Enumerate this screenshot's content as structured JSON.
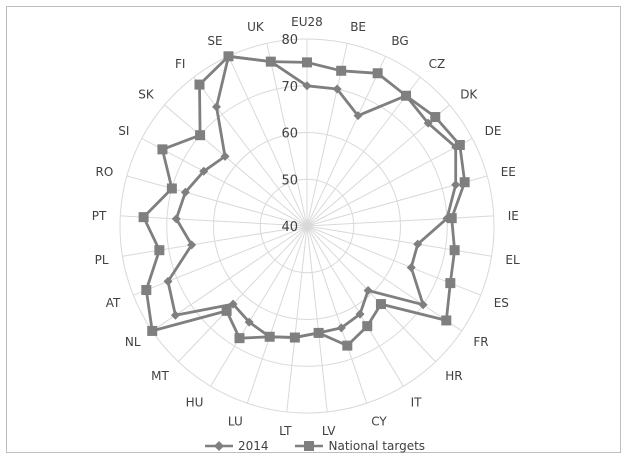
{
  "chart_data": {
    "type": "radar",
    "title": "",
    "categories": [
      "EU28",
      "BE",
      "BG",
      "CZ",
      "DK",
      "DE",
      "EE",
      "IE",
      "EL",
      "ES",
      "FR",
      "HR",
      "IT",
      "CY",
      "LV",
      "LT",
      "LU",
      "HU",
      "MT",
      "NL",
      "AT",
      "PL",
      "PT",
      "RO",
      "SI",
      "SK",
      "FI",
      "SE",
      "UK"
    ],
    "rlim": [
      40,
      80
    ],
    "rticks": [
      "40",
      "50",
      "60",
      "70",
      "80"
    ],
    "grid": true,
    "legend_position": "bottom",
    "series": [
      {
        "name": "2014",
        "marker": "diamond",
        "color": "#7f7f7f",
        "values": [
          70,
          70,
          66,
          75,
          74,
          76,
          73,
          70,
          64,
          64,
          70,
          59,
          62,
          63,
          63,
          64,
          65,
          64,
          63,
          74,
          72,
          65,
          68,
          67,
          65,
          63,
          72,
          80,
          76
        ]
      },
      {
        "name": "National targets",
        "marker": "square",
        "color": "#7f7f7f",
        "values": [
          75,
          74,
          76,
          75,
          76,
          77,
          75,
          71,
          72,
          73,
          76,
          63,
          65,
          67,
          63,
          64,
          65,
          68,
          65,
          80,
          77,
          72,
          75,
          70,
          75,
          70,
          78,
          80,
          76
        ]
      }
    ]
  }
}
